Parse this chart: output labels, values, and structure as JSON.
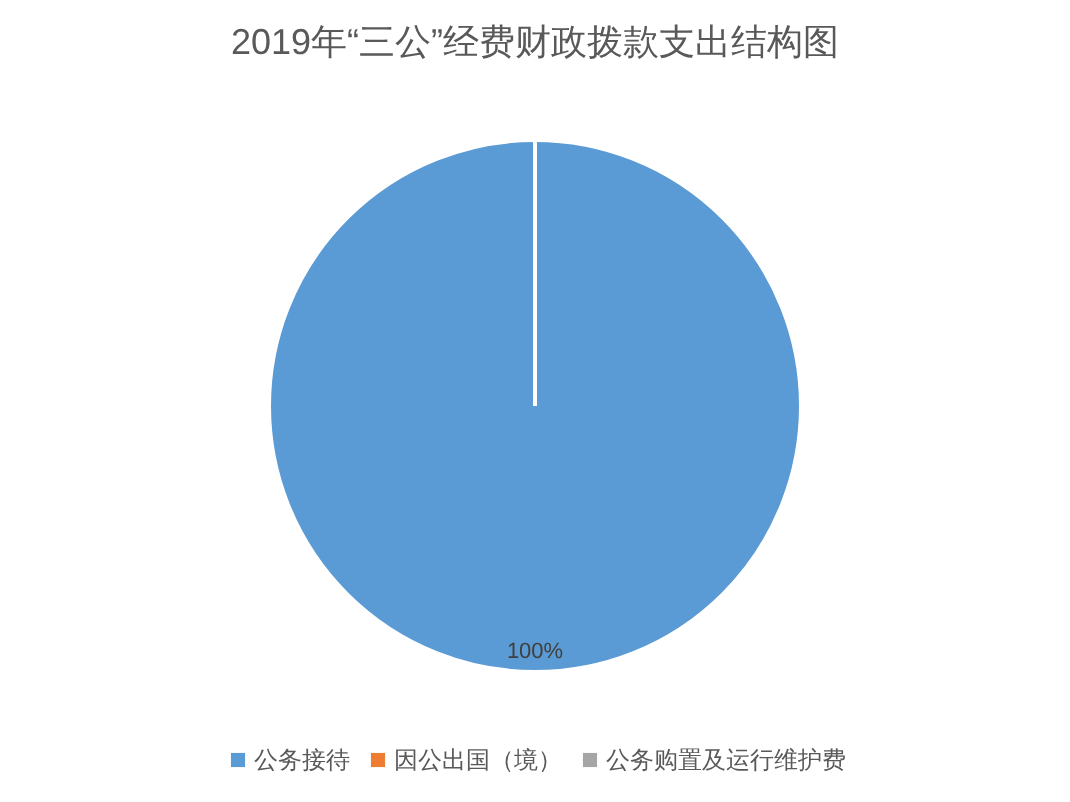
{
  "chart_data": {
    "type": "pie",
    "title": "2019年“三公”经费财政拨款支出结构图",
    "categories": [
      "公务接待",
      "因公出国（境）",
      "公务购置及运行维护费"
    ],
    "values": [
      100,
      0,
      0
    ],
    "colors": [
      "#5b9bd5",
      "#ed7d31",
      "#a5a5a5"
    ],
    "value_labels": [
      "100%",
      null,
      null
    ],
    "legend": "bottom"
  }
}
